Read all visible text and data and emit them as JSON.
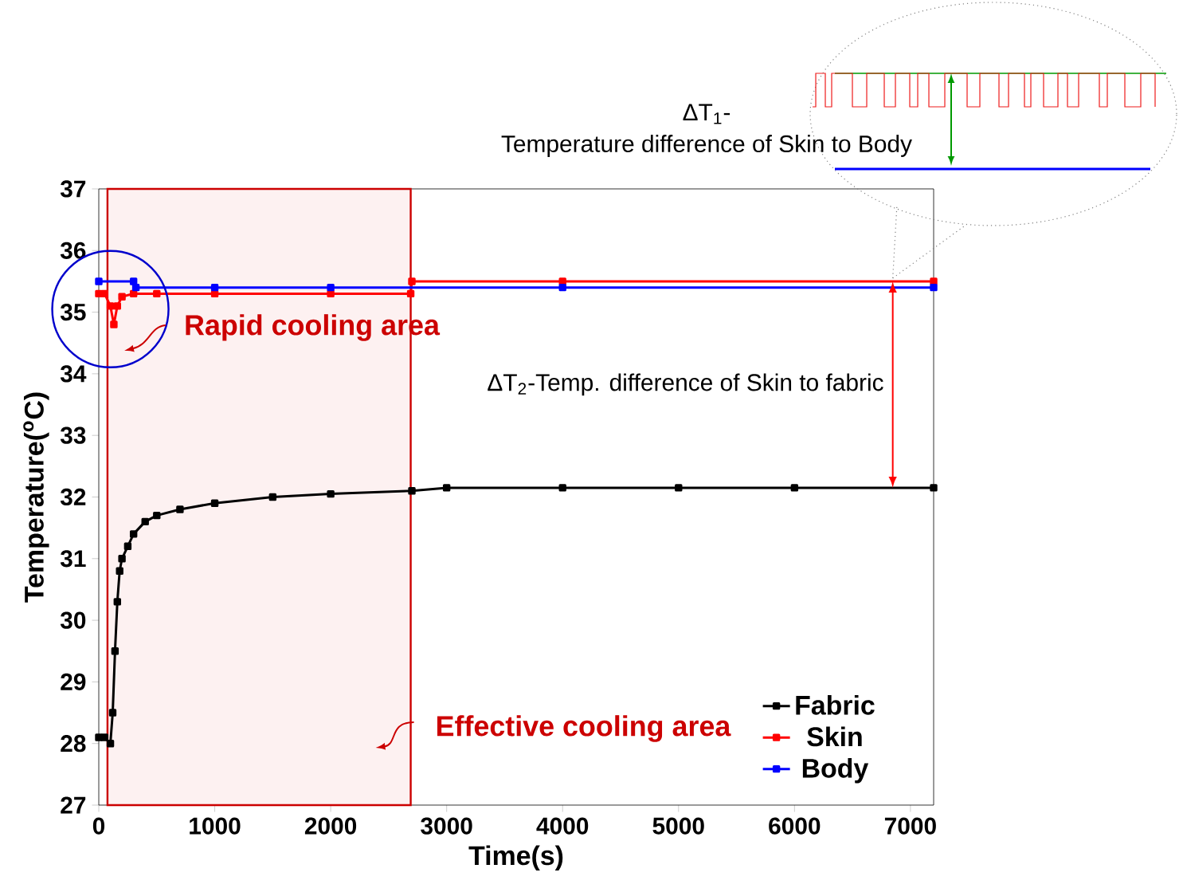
{
  "chart_data": {
    "type": "line",
    "xlabel": "Time(s)",
    "ylabel": "Temperature($^{o}$C)",
    "xlim": [
      0,
      7200
    ],
    "ylim": [
      27,
      37
    ],
    "xticks": [
      0,
      1000,
      2000,
      3000,
      4000,
      5000,
      6000,
      7000
    ],
    "yticks": [
      27,
      28,
      29,
      30,
      31,
      32,
      33,
      34,
      35,
      36,
      37
    ],
    "marker": "square",
    "legend": "bottom right",
    "series": [
      {
        "name": "Fabric",
        "color": "#000000",
        "x": [
          0,
          50,
          100,
          120,
          140,
          160,
          180,
          200,
          250,
          300,
          400,
          500,
          700,
          1000,
          1500,
          2000,
          2700,
          3000,
          4000,
          5000,
          6000,
          7200
        ],
        "values": [
          28.1,
          28.1,
          28.0,
          28.5,
          29.5,
          30.3,
          30.8,
          31.0,
          31.2,
          31.4,
          31.6,
          31.7,
          31.8,
          31.9,
          32.0,
          32.05,
          32.1,
          32.15,
          32.15,
          32.15,
          32.15,
          32.15
        ]
      },
      {
        "name": "Skin",
        "color": "#ff0000",
        "x": [
          0,
          50,
          100,
          130,
          160,
          200,
          300,
          500,
          1000,
          2000,
          2690,
          2700,
          4000,
          7200
        ],
        "values": [
          35.3,
          35.3,
          35.1,
          34.8,
          35.1,
          35.25,
          35.3,
          35.3,
          35.3,
          35.3,
          35.3,
          35.5,
          35.5,
          35.5
        ]
      },
      {
        "name": "Body",
        "color": "#0000ff",
        "x": [
          0,
          300,
          320,
          1000,
          2000,
          4000,
          7200
        ],
        "values": [
          35.5,
          35.5,
          35.4,
          35.4,
          35.4,
          35.4,
          35.4
        ]
      }
    ],
    "bands": [
      {
        "axis": "x",
        "from": 75,
        "to": 2690,
        "label": "Effective cooling area",
        "color": "#fdf1f1"
      }
    ],
    "annotations": [
      "ΔT$_{1}$-",
      "Temperature difference of Skin to Body",
      "Rapid cooling area",
      "ΔT$_{2}$-Temp. difference of Skin to fabric"
    ]
  }
}
